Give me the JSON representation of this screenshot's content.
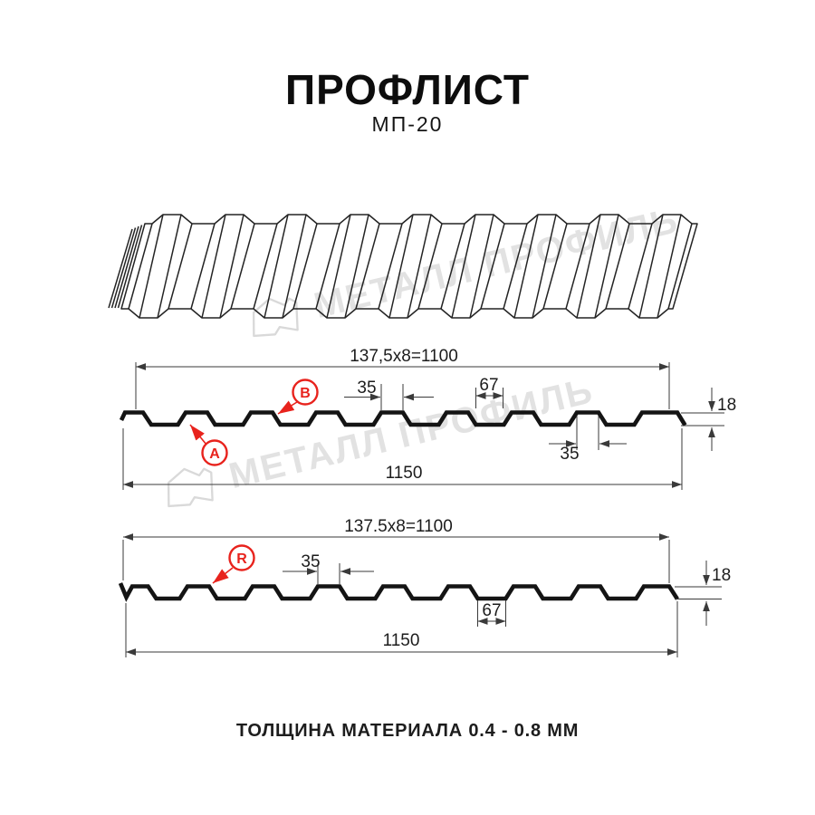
{
  "header": {
    "title": "ПРОФЛИСТ",
    "subtitle": "МП-20"
  },
  "footer": {
    "text": "ТОЛЩИНА МАТЕРИАЛА 0.4 - 0.8 ММ"
  },
  "watermark": {
    "brand": "МЕТАЛЛ ПРОФИЛЬ"
  },
  "colors": {
    "red": "#e8231d",
    "line": "#3a3a3a",
    "profile": "#141414",
    "watermark": "#e2e2e2"
  },
  "diagram_top": {
    "pitch_label": "137,5x8=1100",
    "rib_top_width_label": "35",
    "valley_width_label": "67",
    "height_label": "18",
    "rib_bottom_width_label": "35",
    "total_width_label": "1150",
    "marker_a": "A",
    "marker_b": "B"
  },
  "diagram_bottom": {
    "pitch_label": "137.5x8=1100",
    "rib_top_width_label": "35",
    "valley_width_label": "67",
    "height_label": "18",
    "total_width_label": "1150",
    "marker_r": "R"
  }
}
